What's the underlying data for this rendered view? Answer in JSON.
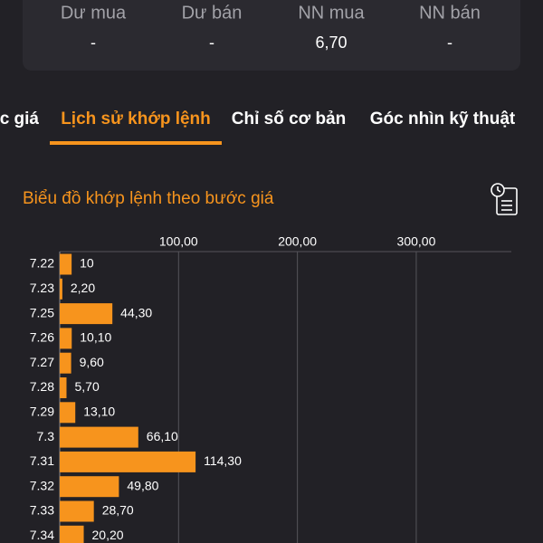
{
  "summary": {
    "headers": [
      "Dư mua",
      "Dư bán",
      "NN mua",
      "NN bán"
    ],
    "values": [
      "-",
      "-",
      "6,70",
      "-"
    ]
  },
  "tabs": [
    "c giá",
    "Lịch sử khớp lệnh",
    "Chỉ số cơ bản",
    "Góc nhìn kỹ thuật"
  ],
  "chart_data": {
    "type": "hbar",
    "title": "Biểu đồ khớp lệnh theo bước giá",
    "categories": [
      "7.22",
      "7.23",
      "7.25",
      "7.26",
      "7.27",
      "7.28",
      "7.29",
      "7.3",
      "7.31",
      "7.32",
      "7.33",
      "7.34"
    ],
    "values": [
      10,
      2.2,
      44.3,
      10.1,
      9.6,
      5.7,
      13.1,
      66.1,
      114.3,
      49.8,
      28.7,
      20.2
    ],
    "value_labels": [
      "10",
      "2,20",
      "44,30",
      "10,10",
      "9,60",
      "5,70",
      "13,10",
      "66,10",
      "114,30",
      "49,80",
      "28,70",
      "20,20"
    ],
    "color": "#f7941d",
    "xlim": [
      0,
      380
    ],
    "xticks": [
      {
        "value": 100,
        "label": "100,00"
      },
      {
        "value": 200,
        "label": "200,00"
      },
      {
        "value": 300,
        "label": "300,00"
      }
    ],
    "grid": true
  }
}
